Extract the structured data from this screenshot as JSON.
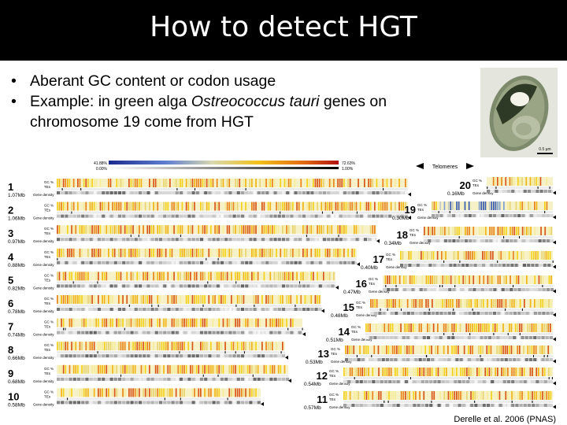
{
  "slide": {
    "title": "How to detect HGT",
    "bullets": [
      {
        "text": "Aberant GC content or codon usage"
      },
      {
        "pre": "Example: in green alga ",
        "italic": "Ostreococcus tauri",
        "post": " genes on chromosome 19 come from HGT"
      }
    ],
    "credit": "Derelle et al. 2006 (PNAS)"
  },
  "figure": {
    "telomeres_label": "Telomeres",
    "legend_gc_min": "41.88%",
    "legend_gc_max": "72.63%",
    "legend_density_min": "0.00%",
    "legend_density_max": "1.00%",
    "row_labels": [
      "GC %",
      "TEs",
      "Gene density"
    ],
    "scale_bar": "0.5 µm",
    "chromosomes": [
      {
        "num": "1",
        "size": "1.07Mb"
      },
      {
        "num": "2",
        "size": "1.06Mb"
      },
      {
        "num": "3",
        "size": "0.97Mb"
      },
      {
        "num": "4",
        "size": "0.88Mb"
      },
      {
        "num": "5",
        "size": "0.82Mb"
      },
      {
        "num": "6",
        "size": "0.78Mb"
      },
      {
        "num": "7",
        "size": "0.74Mb"
      },
      {
        "num": "8",
        "size": "0.66Mb"
      },
      {
        "num": "9",
        "size": "0.68Mb"
      },
      {
        "num": "10",
        "size": "0.58Mb"
      },
      {
        "num": "11",
        "size": "0.57Mb"
      },
      {
        "num": "12",
        "size": "0.54Mb"
      },
      {
        "num": "13",
        "size": "0.53Mb"
      },
      {
        "num": "14",
        "size": "0.51Mb"
      },
      {
        "num": "15",
        "size": "0.48Mb"
      },
      {
        "num": "16",
        "size": "0.47Mb"
      },
      {
        "num": "17",
        "size": "0.40Mb"
      },
      {
        "num": "18",
        "size": "0.34Mb"
      },
      {
        "num": "19",
        "size": "0.30Mb"
      },
      {
        "num": "20",
        "size": "0.16Mb"
      }
    ]
  }
}
